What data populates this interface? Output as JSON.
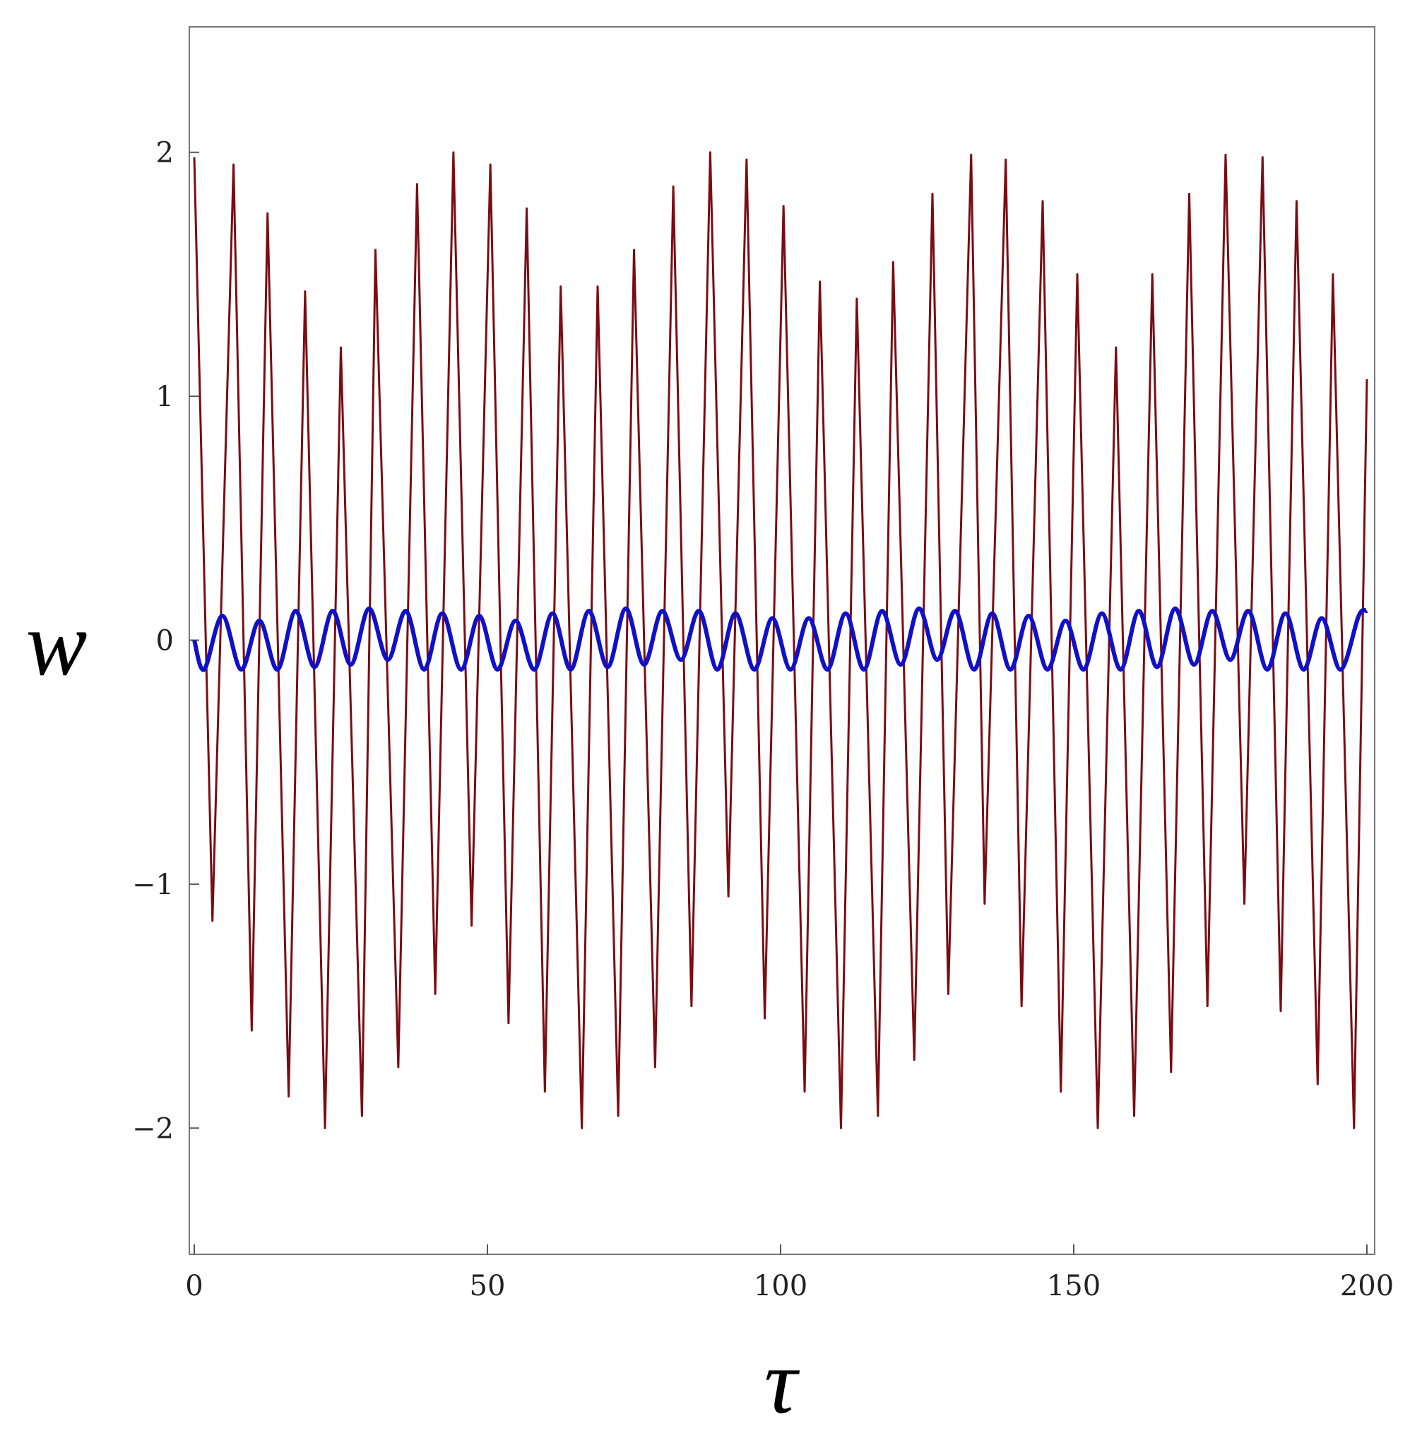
{
  "chart_data": {
    "type": "line",
    "xlabel": "τ",
    "ylabel": "w",
    "xlim": [
      0,
      200
    ],
    "ylim": [
      -2.5,
      2.5
    ],
    "xticks": [
      0,
      50,
      100,
      150,
      200
    ],
    "yticks": [
      {
        "value": -2,
        "label": "−2"
      },
      {
        "value": -1,
        "label": "−1"
      },
      0,
      1,
      2
    ],
    "series": [
      {
        "color": "#7a0c12",
        "x": [
          0,
          3.1,
          6.7,
          9.8,
          12.5,
          16.1,
          18.9,
          22.3,
          25.0,
          28.6,
          30.9,
          34.8,
          38.0,
          41.1,
          44.2,
          47.3,
          50.5,
          53.6,
          56.7,
          59.8,
          62.5,
          66.1,
          68.8,
          72.3,
          75.0,
          78.6,
          81.7,
          84.8,
          88.0,
          91.1,
          94.2,
          97.3,
          100.5,
          104.1,
          106.7,
          110.3,
          113.0,
          116.6,
          119.2,
          122.8,
          125.9,
          128.6,
          132.5,
          134.8,
          138.4,
          141.1,
          144.7,
          147.8,
          150.6,
          154.1,
          157.2,
          160.3,
          163.4,
          166.6,
          169.7,
          172.8,
          175.9,
          179.1,
          182.2,
          185.3,
          188.0,
          191.6,
          194.2,
          197.8,
          200
        ],
        "values": [
          1.98,
          -1.15,
          1.95,
          -1.6,
          1.75,
          -1.87,
          1.43,
          -2.0,
          1.2,
          -1.95,
          1.6,
          -1.75,
          1.87,
          -1.45,
          2.0,
          -1.17,
          1.95,
          -1.57,
          1.77,
          -1.85,
          1.45,
          -2.0,
          1.45,
          -1.95,
          1.6,
          -1.75,
          1.86,
          -1.5,
          2.0,
          -1.05,
          1.97,
          -1.55,
          1.78,
          -1.85,
          1.47,
          -2.0,
          1.4,
          -1.95,
          1.55,
          -1.72,
          1.83,
          -1.45,
          1.99,
          -1.08,
          1.97,
          -1.5,
          1.8,
          -1.85,
          1.5,
          -2.0,
          1.2,
          -1.95,
          1.5,
          -1.77,
          1.83,
          -1.5,
          1.99,
          -1.08,
          1.98,
          -1.52,
          1.8,
          -1.82,
          1.5,
          -2.0,
          1.07
        ]
      },
      {
        "color": "#1010c8",
        "x": [
          0,
          1.7,
          4.8,
          8.0,
          11.1,
          14.2,
          17.3,
          20.5,
          23.6,
          26.7,
          29.8,
          33.0,
          36.1,
          39.2,
          42.3,
          45.5,
          48.6,
          51.7,
          54.8,
          58.0,
          61.1,
          64.2,
          67.3,
          70.5,
          73.6,
          76.7,
          79.8,
          83.0,
          86.1,
          89.2,
          92.3,
          95.5,
          98.6,
          101.7,
          104.8,
          108.0,
          111.1,
          114.2,
          117.3,
          120.5,
          123.6,
          126.7,
          129.8,
          133.0,
          136.1,
          139.2,
          142.3,
          145.5,
          148.6,
          151.7,
          154.8,
          158.0,
          161.1,
          164.2,
          167.3,
          170.5,
          173.6,
          176.7,
          179.8,
          183.0,
          186.1,
          189.2,
          192.3,
          195.5,
          198.6,
          200
        ],
        "values": [
          0,
          -0.12,
          0.1,
          -0.12,
          0.08,
          -0.12,
          0.12,
          -0.11,
          0.12,
          -0.1,
          0.13,
          -0.08,
          0.12,
          -0.12,
          0.11,
          -0.12,
          0.1,
          -0.12,
          0.08,
          -0.12,
          0.11,
          -0.12,
          0.12,
          -0.11,
          0.13,
          -0.1,
          0.12,
          -0.08,
          0.12,
          -0.12,
          0.11,
          -0.12,
          0.09,
          -0.12,
          0.09,
          -0.12,
          0.11,
          -0.12,
          0.12,
          -0.1,
          0.13,
          -0.08,
          0.12,
          -0.12,
          0.11,
          -0.12,
          0.1,
          -0.12,
          0.08,
          -0.12,
          0.11,
          -0.12,
          0.12,
          -0.11,
          0.13,
          -0.1,
          0.12,
          -0.08,
          0.12,
          -0.12,
          0.11,
          -0.12,
          0.09,
          -0.12,
          0.1,
          0.12
        ]
      }
    ]
  }
}
